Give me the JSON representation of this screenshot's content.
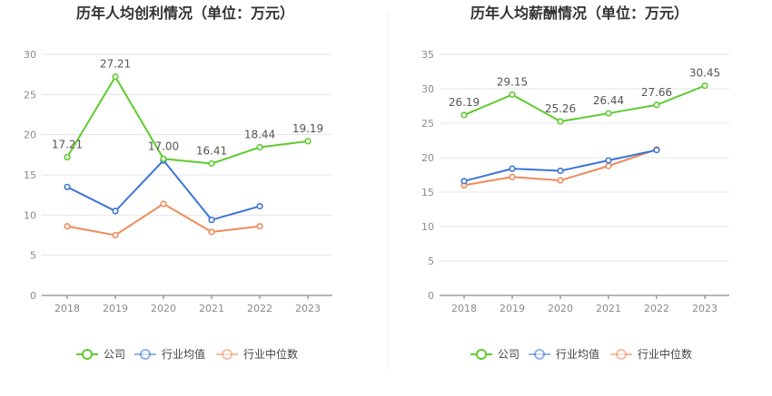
{
  "colors": {
    "company": "#5fcb2f",
    "industry_avg": "#3a75d8",
    "industry_median": "#ef8a5a",
    "grid": "#e4e4e4",
    "axis": "#6f6f6f"
  },
  "legend": {
    "company": "公司",
    "industry_avg": "行业均值",
    "industry_median": "行业中位数"
  },
  "chart_data": [
    {
      "type": "line",
      "title": "历年人均创利情况（单位：万元）",
      "categories": [
        "2018",
        "2019",
        "2020",
        "2021",
        "2022",
        "2023"
      ],
      "ylim": [
        0,
        30
      ],
      "yticks": [
        0,
        5,
        10,
        15,
        20,
        25,
        30
      ],
      "yticklabels": [
        "0",
        "5",
        "10",
        "15",
        "20",
        "25",
        "30"
      ],
      "grid": true,
      "legend_position": "bottom",
      "series": [
        {
          "name": "公司",
          "key": "company",
          "values": [
            17.21,
            27.21,
            17.0,
            16.41,
            18.44,
            19.19
          ],
          "labels": [
            "17.21",
            "27.21",
            "17.00",
            "16.41",
            "18.44",
            "19.19"
          ]
        },
        {
          "name": "行业均值",
          "key": "industry_avg",
          "values": [
            13.5,
            10.5,
            16.8,
            9.4,
            11.1,
            null
          ]
        },
        {
          "name": "行业中位数",
          "key": "industry_median",
          "values": [
            8.6,
            7.5,
            11.4,
            7.9,
            8.6,
            null
          ]
        }
      ]
    },
    {
      "type": "line",
      "title": "历年人均薪酬情况（单位：万元）",
      "categories": [
        "2018",
        "2019",
        "2020",
        "2021",
        "2022",
        "2023"
      ],
      "ylim": [
        0,
        35
      ],
      "yticks": [
        0,
        5,
        10,
        15,
        20,
        25,
        30,
        35
      ],
      "yticklabels": [
        "0",
        "5",
        "10",
        "15",
        "20",
        "25",
        "30",
        "35"
      ],
      "grid": true,
      "legend_position": "bottom",
      "series": [
        {
          "name": "公司",
          "key": "company",
          "values": [
            26.19,
            29.15,
            25.26,
            26.44,
            27.66,
            30.45
          ],
          "labels": [
            "26.19",
            "29.15",
            "25.26",
            "26.44",
            "27.66",
            "30.45"
          ]
        },
        {
          "name": "行业均值",
          "key": "industry_avg",
          "values": [
            16.6,
            18.4,
            18.1,
            19.6,
            21.1,
            null
          ]
        },
        {
          "name": "行业中位数",
          "key": "industry_median",
          "values": [
            16.0,
            17.2,
            16.7,
            18.8,
            21.2,
            null
          ]
        }
      ]
    }
  ]
}
